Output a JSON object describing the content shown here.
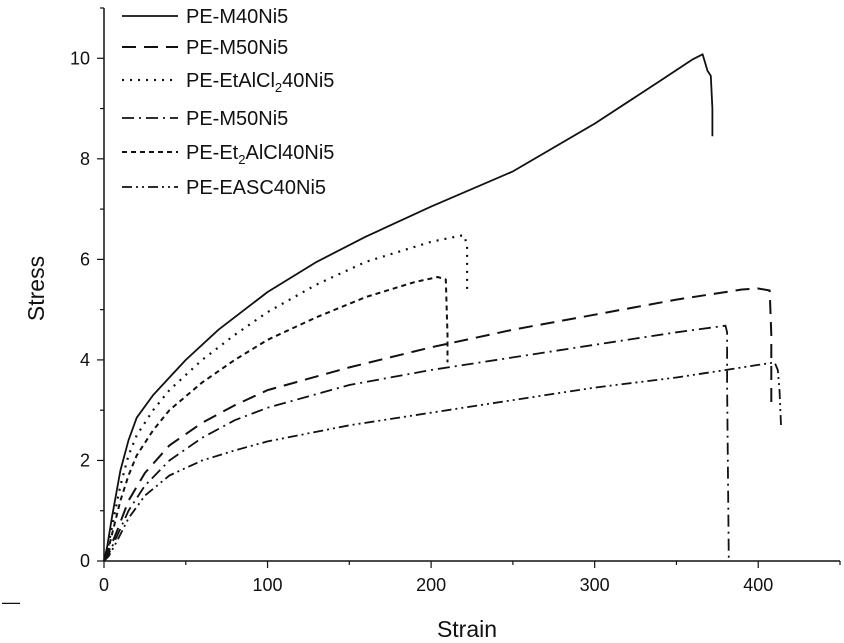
{
  "chart_data": {
    "type": "line",
    "title": "",
    "xlabel": "Strain",
    "ylabel": "Stress",
    "xlim": [
      0,
      450
    ],
    "ylim": [
      0,
      11
    ],
    "x_ticks": [
      0,
      100,
      200,
      300,
      400
    ],
    "y_ticks": [
      0,
      2,
      4,
      6,
      8,
      10
    ],
    "grid": false,
    "legend_position": "top-left",
    "series": [
      {
        "name": "PE-M40Ni5",
        "label": {
          "pre": "PE-M40Ni5",
          "sub": "",
          "post": ""
        },
        "style": "solid",
        "x": [
          0,
          2,
          5,
          10,
          15,
          20,
          30,
          40,
          50,
          70,
          100,
          130,
          160,
          200,
          250,
          300,
          340,
          360,
          366,
          369,
          371,
          372,
          372
        ],
        "y": [
          0,
          0.3,
          0.9,
          1.8,
          2.4,
          2.85,
          3.3,
          3.65,
          4.0,
          4.6,
          5.35,
          5.95,
          6.45,
          7.05,
          7.75,
          8.7,
          9.55,
          9.98,
          10.08,
          9.75,
          9.65,
          9.0,
          8.45
        ]
      },
      {
        "name": "PE-M50Ni5",
        "label": {
          "pre": "PE-M50Ni5",
          "sub": "",
          "post": ""
        },
        "style": "dash",
        "x": [
          0,
          3,
          8,
          15,
          25,
          40,
          60,
          80,
          100,
          150,
          200,
          250,
          300,
          350,
          390,
          400,
          407,
          408,
          408
        ],
        "y": [
          0,
          0.2,
          0.6,
          1.2,
          1.75,
          2.3,
          2.75,
          3.1,
          3.4,
          3.85,
          4.25,
          4.6,
          4.9,
          5.2,
          5.4,
          5.42,
          5.38,
          4.5,
          3.15
        ]
      },
      {
        "name": "PE-EtAlCl240Ni5",
        "label": {
          "pre": "PE-EtAlCl",
          "sub": "2",
          "post": "40Ni5"
        },
        "style": "dot",
        "x": [
          0,
          2,
          5,
          10,
          15,
          20,
          30,
          40,
          60,
          80,
          100,
          130,
          160,
          200,
          215,
          220,
          222,
          222
        ],
        "y": [
          0,
          0.2,
          0.7,
          1.5,
          2.1,
          2.5,
          3.0,
          3.4,
          4.0,
          4.5,
          4.95,
          5.5,
          5.95,
          6.35,
          6.45,
          6.48,
          6.3,
          5.3
        ]
      },
      {
        "name": "PE-M50Ni5",
        "label": {
          "pre": "PE-M50Ni5",
          "sub": "",
          "post": ""
        },
        "style": "dashdot",
        "x": [
          0,
          3,
          8,
          15,
          25,
          40,
          60,
          80,
          100,
          150,
          200,
          250,
          300,
          350,
          380,
          381,
          381,
          382
        ],
        "y": [
          0,
          0.15,
          0.5,
          1.0,
          1.5,
          2.0,
          2.45,
          2.8,
          3.05,
          3.5,
          3.8,
          4.05,
          4.3,
          4.55,
          4.68,
          4.55,
          3.5,
          0
        ]
      },
      {
        "name": "PE-Et2AlCl40Ni5",
        "label": {
          "pre": "PE-Et",
          "sub": "2",
          "post": "AlCl40Ni5"
        },
        "style": "shortdash",
        "x": [
          0,
          2,
          5,
          10,
          15,
          20,
          30,
          40,
          60,
          80,
          100,
          130,
          160,
          190,
          200,
          204,
          207,
          209,
          210,
          210
        ],
        "y": [
          0,
          0.15,
          0.55,
          1.2,
          1.7,
          2.1,
          2.6,
          3.0,
          3.55,
          4.0,
          4.4,
          4.85,
          5.25,
          5.55,
          5.62,
          5.65,
          5.62,
          5.6,
          4.5,
          3.95
        ]
      },
      {
        "name": "PE-EASC40Ni5",
        "label": {
          "pre": "PE-EASC40Ni5",
          "sub": "",
          "post": ""
        },
        "style": "dashdotdot",
        "x": [
          0,
          3,
          8,
          15,
          25,
          40,
          60,
          80,
          100,
          150,
          200,
          250,
          300,
          350,
          380,
          400,
          410,
          412,
          413,
          414
        ],
        "y": [
          0,
          0.1,
          0.4,
          0.85,
          1.3,
          1.7,
          2.0,
          2.2,
          2.38,
          2.7,
          2.95,
          3.2,
          3.45,
          3.65,
          3.8,
          3.9,
          3.95,
          3.8,
          3.4,
          2.65
        ]
      }
    ]
  },
  "page_marks": {
    "stray_mark": "—"
  }
}
